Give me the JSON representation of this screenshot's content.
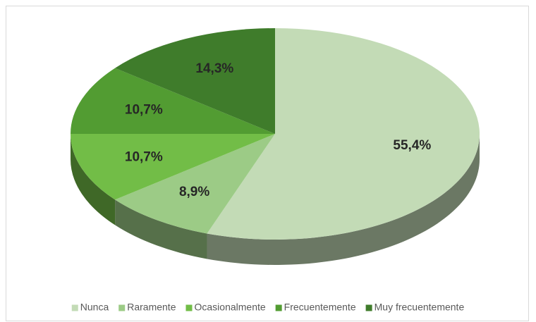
{
  "chart_data": {
    "type": "pie",
    "three_d": true,
    "categories": [
      "Nunca",
      "Raramente",
      "Ocasionalmente",
      "Frecuentemente",
      "Muy frecuentemente"
    ],
    "values": [
      55.4,
      8.9,
      10.7,
      10.7,
      14.3
    ],
    "value_labels": [
      "55,4%",
      "8,9%",
      "10,7%",
      "10,7%",
      "14,3%"
    ],
    "colors": [
      "#c3dbb6",
      "#9ccb86",
      "#72bd47",
      "#529c32",
      "#3f7c2b"
    ],
    "legend": "bottom"
  }
}
